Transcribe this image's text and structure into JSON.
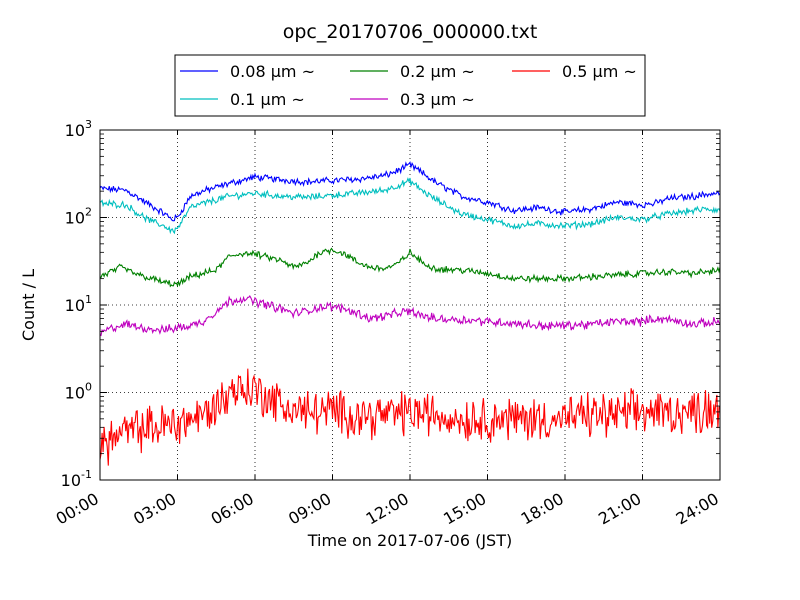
{
  "chart_data": {
    "type": "line",
    "title": "opc_20170706_000000.txt",
    "xlabel": "Time on 2017-07-06 (JST)",
    "ylabel": "Count / L",
    "xticks": [
      "00:00",
      "03:00",
      "06:00",
      "09:00",
      "12:00",
      "15:00",
      "18:00",
      "21:00",
      "24:00"
    ],
    "x_range_hours": [
      0,
      24
    ],
    "yscale": "log",
    "ylim": [
      0.1,
      1000
    ],
    "yticks": [
      {
        "value": 0.1,
        "base": "10",
        "exp": "-1"
      },
      {
        "value": 1,
        "base": "10",
        "exp": "0"
      },
      {
        "value": 10,
        "base": "10",
        "exp": "1"
      },
      {
        "value": 100,
        "base": "10",
        "exp": "2"
      },
      {
        "value": 1000,
        "base": "10",
        "exp": "3"
      }
    ],
    "grid": true,
    "legend_position": "top-center",
    "series": [
      {
        "name": "0.08 μm ~",
        "color": "#0000ff",
        "noise": 0.03,
        "points": [
          [
            0,
            215
          ],
          [
            1,
            205
          ],
          [
            1.6,
            160
          ],
          [
            2,
            135
          ],
          [
            2.5,
            110
          ],
          [
            2.8,
            95
          ],
          [
            3,
            100
          ],
          [
            3.5,
            175
          ],
          [
            4,
            200
          ],
          [
            5,
            245
          ],
          [
            6,
            290
          ],
          [
            7,
            270
          ],
          [
            8,
            255
          ],
          [
            9,
            265
          ],
          [
            10,
            275
          ],
          [
            11,
            300
          ],
          [
            11.5,
            340
          ],
          [
            12,
            400
          ],
          [
            12.5,
            320
          ],
          [
            13,
            250
          ],
          [
            14,
            175
          ],
          [
            15,
            150
          ],
          [
            15.5,
            135
          ],
          [
            16,
            120
          ],
          [
            17,
            130
          ],
          [
            18,
            115
          ],
          [
            19,
            125
          ],
          [
            20,
            150
          ],
          [
            21,
            140
          ],
          [
            21.5,
            145
          ],
          [
            22,
            165
          ],
          [
            23,
            175
          ],
          [
            23.5,
            185
          ],
          [
            24,
            190
          ]
        ]
      },
      {
        "name": "0.1 μm ~",
        "color": "#00bfbf",
        "noise": 0.03,
        "points": [
          [
            0,
            145
          ],
          [
            1,
            140
          ],
          [
            1.6,
            105
          ],
          [
            2,
            90
          ],
          [
            2.5,
            80
          ],
          [
            2.8,
            70
          ],
          [
            3,
            75
          ],
          [
            3.5,
            130
          ],
          [
            4,
            145
          ],
          [
            5,
            175
          ],
          [
            6,
            190
          ],
          [
            7,
            175
          ],
          [
            8,
            170
          ],
          [
            9,
            180
          ],
          [
            10,
            190
          ],
          [
            11,
            205
          ],
          [
            11.5,
            230
          ],
          [
            12,
            260
          ],
          [
            12.5,
            200
          ],
          [
            13,
            160
          ],
          [
            14,
            110
          ],
          [
            15,
            95
          ],
          [
            16,
            80
          ],
          [
            17,
            85
          ],
          [
            18,
            80
          ],
          [
            19,
            85
          ],
          [
            20,
            100
          ],
          [
            21,
            95
          ],
          [
            22,
            110
          ],
          [
            23,
            120
          ],
          [
            23.5,
            125
          ],
          [
            24,
            120
          ]
        ]
      },
      {
        "name": "0.2 μm ~",
        "color": "#008000",
        "noise": 0.03,
        "points": [
          [
            0,
            21
          ],
          [
            0.8,
            27
          ],
          [
            1.5,
            22
          ],
          [
            2,
            20
          ],
          [
            2.5,
            18
          ],
          [
            3,
            17
          ],
          [
            3.5,
            21
          ],
          [
            4,
            23
          ],
          [
            4.5,
            25
          ],
          [
            5,
            36
          ],
          [
            5.5,
            39
          ],
          [
            6,
            38
          ],
          [
            6.5,
            35
          ],
          [
            7,
            32
          ],
          [
            7.5,
            27
          ],
          [
            8,
            30
          ],
          [
            8.5,
            40
          ],
          [
            9,
            43
          ],
          [
            9.5,
            38
          ],
          [
            10,
            30
          ],
          [
            10.5,
            27
          ],
          [
            11,
            26
          ],
          [
            11.5,
            29
          ],
          [
            12,
            40
          ],
          [
            12.5,
            30
          ],
          [
            13,
            26
          ],
          [
            14,
            25
          ],
          [
            15,
            23
          ],
          [
            16,
            20
          ],
          [
            17,
            20
          ],
          [
            18,
            20
          ],
          [
            19,
            21
          ],
          [
            20,
            22
          ],
          [
            21,
            23
          ],
          [
            22,
            24
          ],
          [
            23,
            23
          ],
          [
            23.5,
            24
          ],
          [
            24,
            25
          ]
        ]
      },
      {
        "name": "0.3 μm ~",
        "color": "#bf00bf",
        "noise": 0.04,
        "points": [
          [
            0,
            4.7
          ],
          [
            0.5,
            5.5
          ],
          [
            1,
            6
          ],
          [
            1.5,
            5.6
          ],
          [
            2,
            5.3
          ],
          [
            2.5,
            5.2
          ],
          [
            3,
            5.5
          ],
          [
            3.5,
            5.8
          ],
          [
            4,
            6.5
          ],
          [
            4.5,
            8.5
          ],
          [
            5,
            11
          ],
          [
            5.5,
            12
          ],
          [
            6,
            11
          ],
          [
            6.5,
            10
          ],
          [
            7,
            9
          ],
          [
            7.5,
            8
          ],
          [
            8,
            8.5
          ],
          [
            8.5,
            9.5
          ],
          [
            9,
            9.5
          ],
          [
            9.5,
            9
          ],
          [
            10,
            8
          ],
          [
            10.5,
            7
          ],
          [
            11,
            7.5
          ],
          [
            11.5,
            8
          ],
          [
            12,
            8.5
          ],
          [
            12.5,
            7.5
          ],
          [
            13,
            7
          ],
          [
            14,
            6.8
          ],
          [
            15,
            6.5
          ],
          [
            16,
            6.2
          ],
          [
            17,
            5.8
          ],
          [
            18,
            5.8
          ],
          [
            19,
            6
          ],
          [
            20,
            6.5
          ],
          [
            21,
            6.5
          ],
          [
            21.5,
            7
          ],
          [
            22,
            6.8
          ],
          [
            23,
            6
          ],
          [
            24,
            6.5
          ]
        ]
      },
      {
        "name": "0.5 μm ~",
        "color": "#ff0000",
        "noise": 0.2,
        "points": [
          [
            0,
            0.25
          ],
          [
            0.5,
            0.3
          ],
          [
            1,
            0.35
          ],
          [
            2,
            0.4
          ],
          [
            3,
            0.45
          ],
          [
            3.5,
            0.5
          ],
          [
            4,
            0.55
          ],
          [
            4.5,
            0.7
          ],
          [
            5,
            1.0
          ],
          [
            5.5,
            1.15
          ],
          [
            6,
            1.05
          ],
          [
            6.5,
            0.9
          ],
          [
            7,
            0.7
          ],
          [
            8,
            0.6
          ],
          [
            9,
            0.6
          ],
          [
            10,
            0.55
          ],
          [
            11,
            0.55
          ],
          [
            12,
            0.6
          ],
          [
            13,
            0.55
          ],
          [
            14,
            0.5
          ],
          [
            15,
            0.5
          ],
          [
            16,
            0.5
          ],
          [
            17,
            0.5
          ],
          [
            18,
            0.5
          ],
          [
            19,
            0.55
          ],
          [
            20,
            0.55
          ],
          [
            21,
            0.6
          ],
          [
            22,
            0.6
          ],
          [
            23,
            0.6
          ],
          [
            24,
            0.7
          ]
        ]
      }
    ]
  }
}
